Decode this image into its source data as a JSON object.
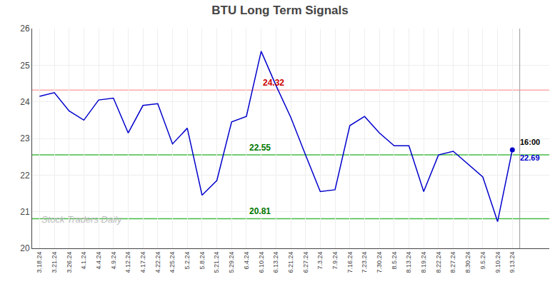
{
  "chart_data": {
    "type": "line",
    "title": "BTU Long Term Signals",
    "categories": [
      "3.18.24",
      "3.21.24",
      "3.26.24",
      "4.1.24",
      "4.4.24",
      "4.9.24",
      "4.12.24",
      "4.17.24",
      "4.22.24",
      "4.25.24",
      "5.2.24",
      "5.8.24",
      "5.21.24",
      "5.29.24",
      "6.4.24",
      "6.10.24",
      "6.13.24",
      "6.21.24",
      "6.27.24",
      "7.3.24",
      "7.9.24",
      "7.16.24",
      "7.23.24",
      "7.30.24",
      "8.5.24",
      "8.13.24",
      "8.19.24",
      "8.22.24",
      "8.27.24",
      "8.30.24",
      "9.5.24",
      "9.10.24",
      "9.13.24"
    ],
    "values": [
      24.15,
      24.25,
      23.75,
      23.5,
      24.05,
      24.1,
      23.15,
      23.9,
      23.95,
      22.85,
      23.28,
      21.45,
      21.85,
      23.45,
      23.6,
      25.38,
      24.45,
      23.58,
      22.55,
      21.55,
      21.6,
      23.35,
      23.6,
      23.15,
      22.8,
      22.8,
      21.55,
      22.55,
      22.65,
      22.3,
      21.95,
      20.73,
      22.69
    ],
    "color": "#0000cc",
    "ylim": [
      20,
      26
    ],
    "yticks": [
      20,
      21,
      22,
      23,
      24,
      25,
      26
    ],
    "grid": true,
    "reference_lines": [
      {
        "value": 24.32,
        "label": "24.32",
        "color": "#ffaaaa",
        "label_color": "#cc0000"
      },
      {
        "value": 22.55,
        "label": "22.55",
        "color": "#44bb44",
        "label_color": "#007700"
      },
      {
        "value": 20.81,
        "label": "20.81",
        "color": "#44bb44",
        "label_color": "#007700"
      }
    ],
    "annotations": [
      {
        "text": "16:00",
        "color": "#000000"
      },
      {
        "text": "22.69",
        "color": "#0000cc"
      }
    ],
    "watermark": {
      "text": "Stock Traders Daily",
      "color": "#bbbbbb"
    }
  }
}
